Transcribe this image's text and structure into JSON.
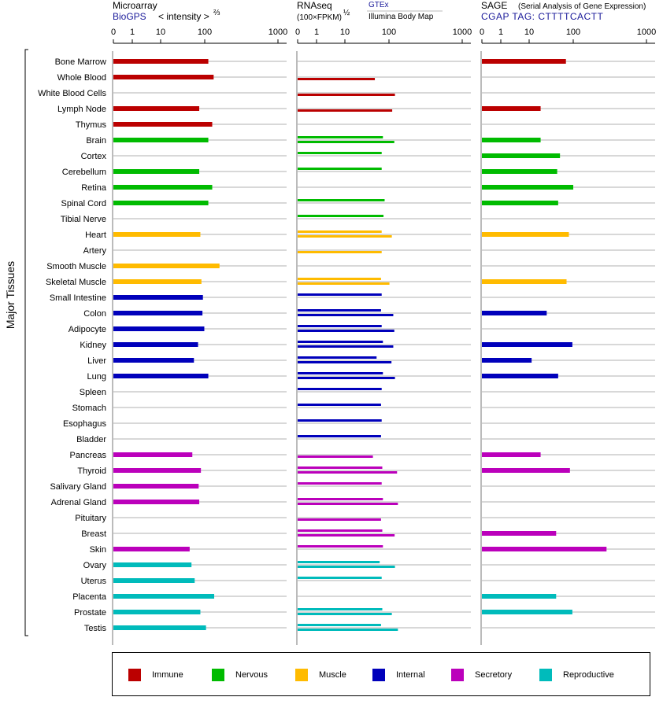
{
  "panels": [
    {
      "id": "microarray",
      "title": "Microarray",
      "source": "BioGPS",
      "unit": "< intensity >",
      "unit_exp": "⅔",
      "source_alt": ""
    },
    {
      "id": "rnaseq",
      "title": "RNAseq",
      "unit": "(100×FPKM)",
      "unit_exp": "½",
      "source": "GTEx",
      "source_alt": "Illumina Body Map"
    },
    {
      "id": "sage",
      "title": "SAGE",
      "note": "(Serial Analysis of Gene Expression)",
      "source": "CGAP TAG: CTTTTCACTT"
    }
  ],
  "ylabel": "Major Tissues",
  "ticks": [
    "0",
    "1",
    "10",
    "100",
    "1000"
  ],
  "legend": [
    {
      "label": "Immune",
      "color": "#bb0000"
    },
    {
      "label": "Nervous",
      "color": "#00bb00"
    },
    {
      "label": "Muscle",
      "color": "#ffbb00"
    },
    {
      "label": "Internal",
      "color": "#0000bb"
    },
    {
      "label": "Secretory",
      "color": "#bb00bb"
    },
    {
      "label": "Reproductive",
      "color": "#00bbbb"
    }
  ],
  "chart_data": {
    "type": "bar",
    "orientation": "horizontal",
    "x_scale": "log",
    "xlim": [
      0,
      1000
    ],
    "categories": [
      "Bone Marrow",
      "Whole Blood",
      "White Blood Cells",
      "Lymph Node",
      "Thymus",
      "Brain",
      "Cortex",
      "Cerebellum",
      "Retina",
      "Spinal Cord",
      "Tibial Nerve",
      "Heart",
      "Artery",
      "Smooth Muscle",
      "Skeletal Muscle",
      "Small Intestine",
      "Colon",
      "Adipocyte",
      "Kidney",
      "Liver",
      "Lung",
      "Spleen",
      "Stomach",
      "Esophagus",
      "Bladder",
      "Pancreas",
      "Thyroid",
      "Salivary Gland",
      "Adrenal Gland",
      "Pituitary",
      "Breast",
      "Skin",
      "Ovary",
      "Uterus",
      "Placenta",
      "Prostate",
      "Testis"
    ],
    "groups": [
      "Immune",
      "Immune",
      "Immune",
      "Immune",
      "Immune",
      "Nervous",
      "Nervous",
      "Nervous",
      "Nervous",
      "Nervous",
      "Nervous",
      "Muscle",
      "Muscle",
      "Muscle",
      "Muscle",
      "Internal",
      "Internal",
      "Internal",
      "Internal",
      "Internal",
      "Internal",
      "Internal",
      "Internal",
      "Internal",
      "Internal",
      "Secretory",
      "Secretory",
      "Secretory",
      "Secretory",
      "Secretory",
      "Secretory",
      "Secretory",
      "Reproductive",
      "Reproductive",
      "Reproductive",
      "Reproductive",
      "Reproductive"
    ],
    "series": [
      {
        "name": "BioGPS",
        "values": [
          53,
          70,
          null,
          33,
          65,
          53,
          null,
          33,
          65,
          53,
          null,
          35,
          null,
          95,
          37,
          40,
          39,
          43,
          31,
          25,
          53,
          null,
          null,
          null,
          null,
          23,
          36,
          32,
          33,
          null,
          null,
          20,
          22,
          26,
          72,
          35,
          47
        ]
      },
      {
        "name": "GTEx",
        "values": [
          null,
          null,
          null,
          null,
          null,
          32,
          null,
          null,
          null,
          null,
          null,
          null,
          null,
          null,
          null,
          null,
          null,
          null,
          null,
          null,
          null,
          null,
          null,
          null,
          null,
          null,
          null,
          null,
          null,
          null,
          null,
          null,
          null,
          null,
          null,
          null,
          null
        ]
      },
      {
        "name": "Illumina Body Map",
        "values": [
          null,
          null,
          null,
          null,
          null,
          null,
          null,
          null,
          null,
          null,
          null,
          null,
          null,
          null,
          null,
          null,
          null,
          null,
          null,
          null,
          null,
          null,
          null,
          null,
          null,
          null,
          null,
          null,
          null,
          null,
          null,
          null,
          null,
          null,
          null,
          null,
          null
        ]
      }
    ],
    "rnaseq": {
      "gtex": [
        null,
        null,
        null,
        null,
        null,
        32,
        30,
        30,
        null,
        35,
        33,
        30,
        null,
        null,
        29,
        30,
        29,
        30,
        32,
        23,
        32,
        30,
        29,
        30,
        29,
        null,
        31,
        30,
        32,
        null,
        31,
        32,
        27,
        30,
        null,
        31,
        29
      ],
      "illumina_body_map": [
        null,
        21,
        60,
        52,
        null,
        58,
        null,
        null,
        null,
        null,
        null,
        51,
        30,
        null,
        45,
        null,
        55,
        58,
        55,
        50,
        60,
        null,
        null,
        null,
        null,
        19,
        67,
        null,
        70,
        29,
        59,
        null,
        60,
        null,
        null,
        51,
        70
      ]
    },
    "sage": [
      30,
      null,
      null,
      8,
      null,
      8,
      22,
      19,
      44,
      20,
      null,
      35,
      null,
      null,
      31,
      null,
      11,
      null,
      42,
      5,
      20,
      null,
      null,
      null,
      null,
      8,
      37,
      null,
      null,
      null,
      18,
      250,
      null,
      null,
      18,
      42,
      null
    ]
  }
}
